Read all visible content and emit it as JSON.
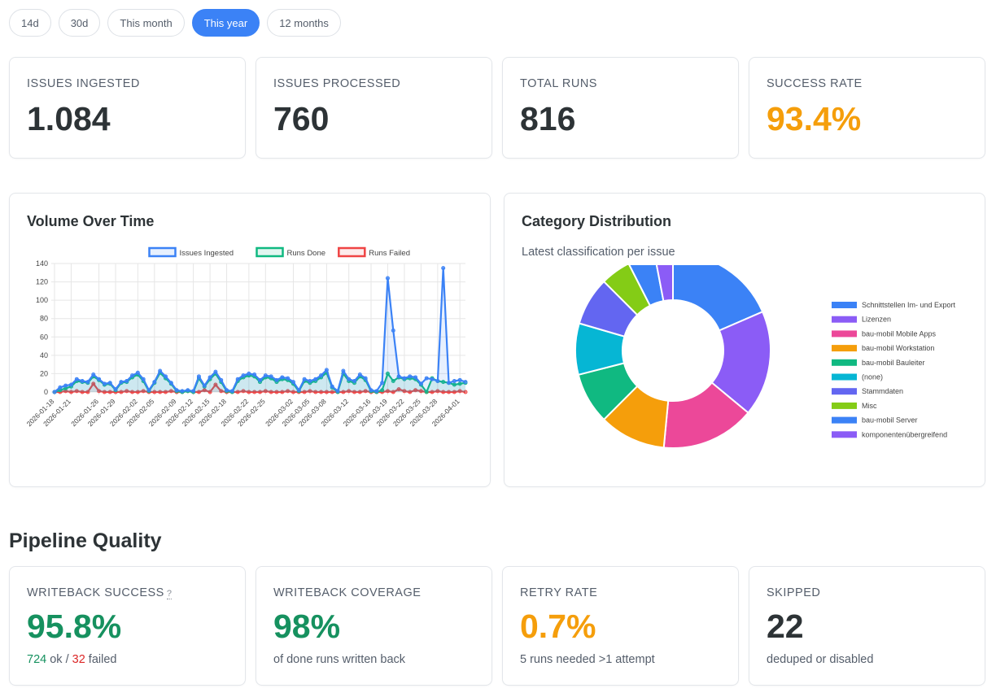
{
  "filters": {
    "options": [
      "14d",
      "30d",
      "This month",
      "This year",
      "12 months"
    ],
    "selected": "This year"
  },
  "kpis": [
    {
      "label": "ISSUES INGESTED",
      "value": "1.084",
      "color": "#2d3336"
    },
    {
      "label": "ISSUES PROCESSED",
      "value": "760",
      "color": "#2d3336"
    },
    {
      "label": "TOTAL RUNS",
      "value": "816",
      "color": "#2d3336"
    },
    {
      "label": "SUCCESS RATE",
      "value": "93.4%",
      "color": "#f59e0b"
    }
  ],
  "volume_panel": {
    "title": "Volume Over Time"
  },
  "category_panel": {
    "title": "Category Distribution",
    "subtitle": "Latest classification per issue"
  },
  "pipeline": {
    "title": "Pipeline Quality",
    "writeback_success": {
      "label": "WRITEBACK SUCCESS",
      "help": "?",
      "value": "95.8%",
      "ok_count": "724",
      "ok_text": " ok / ",
      "failed_count": "32",
      "failed_text": " failed"
    },
    "writeback_coverage": {
      "label": "WRITEBACK COVERAGE",
      "value": "98%",
      "sub": "of done runs written back"
    },
    "retry_rate": {
      "label": "RETRY RATE",
      "value": "0.7%",
      "sub": "5 runs needed >1 attempt"
    },
    "skipped": {
      "label": "SKIPPED",
      "value": "22",
      "sub": "deduped or disabled"
    }
  },
  "colors": {
    "green": "#16915f",
    "orange": "#f59e0b",
    "red": "#dc2626",
    "accent": "#3b82f6"
  },
  "chart_data": [
    {
      "type": "line",
      "title": "",
      "xlabel": "",
      "ylabel": "",
      "ylim": [
        0,
        140
      ],
      "yticks": [
        0,
        20,
        40,
        60,
        80,
        100,
        120,
        140
      ],
      "x": [
        "2026-01-18",
        "2026-01-19",
        "2026-01-20",
        "2026-01-21",
        "2026-01-22",
        "2026-01-23",
        "2026-01-24",
        "2026-01-25",
        "2026-01-26",
        "2026-01-27",
        "2026-01-28",
        "2026-01-29",
        "2026-01-30",
        "2026-01-31",
        "2026-02-01",
        "2026-02-02",
        "2026-02-03",
        "2026-02-04",
        "2026-02-05",
        "2026-02-06",
        "2026-02-07",
        "2026-02-08",
        "2026-02-09",
        "2026-02-10",
        "2026-02-11",
        "2026-02-12",
        "2026-02-13",
        "2026-02-14",
        "2026-02-15",
        "2026-02-16",
        "2026-02-17",
        "2026-02-18",
        "2026-02-19",
        "2026-02-20",
        "2026-02-21",
        "2026-02-22",
        "2026-02-23",
        "2026-02-24",
        "2026-02-25",
        "2026-02-26",
        "2026-02-27",
        "2026-02-28",
        "2026-03-01",
        "2026-03-02",
        "2026-03-03",
        "2026-03-04",
        "2026-03-05",
        "2026-03-06",
        "2026-03-07",
        "2026-03-08",
        "2026-03-09",
        "2026-03-10",
        "2026-03-11",
        "2026-03-12",
        "2026-03-13",
        "2026-03-14",
        "2026-03-15",
        "2026-03-16",
        "2026-03-17",
        "2026-03-18",
        "2026-03-19",
        "2026-03-20",
        "2026-03-21",
        "2026-03-22",
        "2026-03-23",
        "2026-03-24",
        "2026-03-25",
        "2026-03-26",
        "2026-03-27",
        "2026-03-28",
        "2026-03-29",
        "2026-03-30",
        "2026-03-31",
        "2026-04-01",
        "2026-04-02"
      ],
      "tick_labels": [
        "2026-01-18",
        "2026-01-21",
        "2026-01-26",
        "2026-01-29",
        "2026-02-02",
        "2026-02-05",
        "2026-02-09",
        "2026-02-12",
        "2026-02-15",
        "2026-02-18",
        "2026-02-22",
        "2026-02-25",
        "2026-03-02",
        "2026-03-05",
        "2026-03-08",
        "2026-03-12",
        "2026-03-16",
        "2026-03-19",
        "2026-03-22",
        "2026-03-25",
        "2026-03-28",
        "2026-04-01"
      ],
      "legend_position": "top",
      "grid": true,
      "series": [
        {
          "name": "Issues Ingested",
          "color": "#3b82f6",
          "fill": "rgba(59,130,246,0.12)",
          "values": [
            0,
            5,
            7,
            8,
            14,
            12,
            11,
            19,
            14,
            9,
            10,
            3,
            11,
            12,
            18,
            21,
            14,
            2,
            11,
            23,
            17,
            10,
            2,
            1,
            2,
            1,
            17,
            7,
            16,
            22,
            13,
            2,
            1,
            14,
            18,
            20,
            19,
            13,
            18,
            17,
            13,
            16,
            15,
            11,
            2,
            14,
            12,
            14,
            18,
            24,
            6,
            1,
            23,
            14,
            12,
            19,
            15,
            2,
            1,
            10,
            124,
            67,
            17,
            15,
            17,
            16,
            9,
            15,
            14,
            12,
            135,
            10,
            12,
            13,
            11
          ]
        },
        {
          "name": "Runs Done",
          "color": "#10b981",
          "fill": "rgba(16,185,129,0.12)",
          "values": [
            0,
            2,
            4,
            6,
            12,
            11,
            10,
            17,
            13,
            8,
            9,
            2,
            10,
            11,
            16,
            19,
            12,
            1,
            10,
            21,
            15,
            9,
            1,
            0,
            1,
            0,
            15,
            6,
            14,
            20,
            11,
            1,
            0,
            12,
            16,
            18,
            17,
            11,
            16,
            15,
            11,
            14,
            13,
            9,
            1,
            12,
            10,
            12,
            16,
            21,
            5,
            0,
            20,
            12,
            10,
            17,
            13,
            1,
            0,
            2,
            20,
            12,
            16,
            14,
            15,
            14,
            8,
            0,
            15,
            12,
            11,
            10,
            8,
            9,
            10
          ]
        },
        {
          "name": "Runs Failed",
          "color": "#ef4444",
          "fill": "rgba(239,68,68,0.10)",
          "values": [
            0,
            0,
            1,
            0,
            1,
            0,
            0,
            9,
            1,
            0,
            0,
            0,
            0,
            1,
            0,
            0,
            1,
            0,
            0,
            0,
            0,
            1,
            0,
            0,
            1,
            0,
            0,
            2,
            0,
            8,
            1,
            0,
            0,
            0,
            1,
            0,
            0,
            0,
            1,
            0,
            0,
            0,
            1,
            0,
            0,
            0,
            1,
            0,
            0,
            0,
            0,
            0,
            0,
            1,
            0,
            0,
            1,
            0,
            0,
            0,
            1,
            0,
            3,
            1,
            0,
            2,
            1,
            0,
            0,
            1,
            0,
            0,
            0,
            1,
            0
          ]
        }
      ]
    },
    {
      "type": "pie",
      "title": "",
      "categories": [
        "Schnittstellen Im- und Export",
        "Lizenzen",
        "bau-mobil Mobile Apps",
        "bau-mobil Workstation",
        "bau-mobil Bauleiter",
        "(none)",
        "Stammdaten",
        "Misc",
        "bau-mobil Server",
        "komponentenübergreifend"
      ],
      "values": [
        18.5,
        17.5,
        15.5,
        11.0,
        8.5,
        8.5,
        8.0,
        5.0,
        4.5,
        3.0
      ],
      "colors": [
        "#3b82f6",
        "#8b5cf6",
        "#ec4899",
        "#f59e0b",
        "#10b981",
        "#06b6d4",
        "#6366f1",
        "#84cc16",
        "#3b82f6",
        "#8b5cf6"
      ],
      "legend_position": "right"
    }
  ]
}
